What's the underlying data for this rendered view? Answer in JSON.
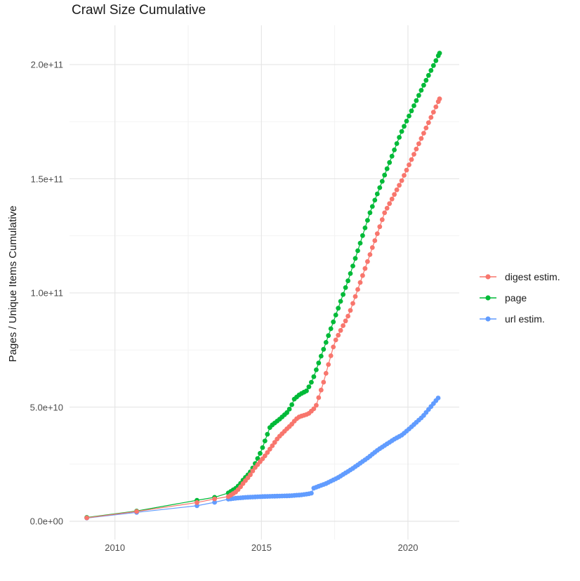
{
  "title": "Crawl Size Cumulative",
  "axes": {
    "y_title": "Pages / Unique Items Cumulative",
    "y_ticks": [
      "2.0e+11",
      "1.5e+11",
      "1.0e+11",
      "5.0e+10",
      "0.0e+00"
    ],
    "x_ticks": [
      "2010",
      "2015",
      "2020"
    ]
  },
  "legend": {
    "items": [
      {
        "label": "digest estim.",
        "color": "#F8766D"
      },
      {
        "label": "page",
        "color": "#00BA38"
      },
      {
        "label": "url estim.",
        "color": "#619CFF"
      }
    ]
  },
  "chart_data": {
    "type": "line",
    "title": "Crawl Size Cumulative",
    "xlabel": "",
    "ylabel": "Pages / Unique Items Cumulative",
    "legend_position": "right",
    "grid": true,
    "xlim": [
      2008.45,
      2021.75
    ],
    "ylim_e9": [
      -8,
      217.2
    ],
    "x_major_gridlines": [
      2010,
      2015,
      2020
    ],
    "x_minor_gridlines": [
      2012.5,
      2017.5
    ],
    "y_major_gridlines_e9": [
      0,
      50,
      100,
      150,
      200
    ],
    "y_minor_gridlines_e9": [
      25,
      75,
      125,
      175
    ],
    "y_unit_note": "all values in billions (1e9) of pages / unique items",
    "point_pattern_note": "sparse early crawls, then roughly monthly crawl points",
    "sparse_years": [
      2009.04,
      2010.74,
      2012.8,
      2013.4
    ],
    "monthly_from": 2013.87,
    "draw_order": [
      2,
      1,
      0
    ],
    "series": [
      {
        "name": "digest estim.",
        "color": "#F8766D",
        "end_year": 2021.08,
        "anchors_year_e9": [
          [
            2009.04,
            1.5
          ],
          [
            2010.74,
            4.3
          ],
          [
            2012.8,
            8.2
          ],
          [
            2013.4,
            9.8
          ],
          [
            2013.87,
            10.8
          ],
          [
            2014.13,
            12.9
          ],
          [
            2014.25,
            14.5
          ],
          [
            2014.4,
            17.0
          ],
          [
            2014.6,
            20.0
          ],
          [
            2014.75,
            23.0
          ],
          [
            2015.1,
            28.3
          ],
          [
            2015.57,
            36.6
          ],
          [
            2015.88,
            40.6
          ],
          [
            2016.0,
            42.0
          ],
          [
            2016.17,
            44.6
          ],
          [
            2016.3,
            45.8
          ],
          [
            2016.6,
            47.0
          ],
          [
            2016.85,
            50.0
          ],
          [
            2017.1,
            60.0
          ],
          [
            2017.5,
            78.5
          ],
          [
            2018.0,
            91.0
          ],
          [
            2019.2,
            135.0
          ],
          [
            2019.78,
            149.0
          ],
          [
            2021.08,
            185.0
          ]
        ]
      },
      {
        "name": "page",
        "color": "#00BA38",
        "end_year": 2021.08,
        "anchors_year_e9": [
          [
            2009.04,
            1.7
          ],
          [
            2010.74,
            4.5
          ],
          [
            2012.8,
            9.2
          ],
          [
            2013.4,
            10.5
          ],
          [
            2013.87,
            12.4
          ],
          [
            2014.13,
            14.5
          ],
          [
            2014.25,
            16.0
          ],
          [
            2014.4,
            18.5
          ],
          [
            2014.6,
            21.2
          ],
          [
            2014.75,
            24.3
          ],
          [
            2015.0,
            31.0
          ],
          [
            2015.3,
            41.5
          ],
          [
            2015.6,
            44.5
          ],
          [
            2015.88,
            47.7
          ],
          [
            2016.0,
            50.0
          ],
          [
            2016.12,
            53.5
          ],
          [
            2016.3,
            55.5
          ],
          [
            2016.55,
            57.2
          ],
          [
            2016.75,
            62.0
          ],
          [
            2017.5,
            89.0
          ],
          [
            2018.0,
            107.0
          ],
          [
            2018.7,
            135.0
          ],
          [
            2019.76,
            170.0
          ],
          [
            2020.5,
            190.0
          ],
          [
            2021.08,
            205.0
          ]
        ]
      },
      {
        "name": "url estim.",
        "color": "#619CFF",
        "end_year": 2021.03,
        "anchors_year_e9": [
          [
            2009.04,
            1.4
          ],
          [
            2010.74,
            3.9
          ],
          [
            2012.8,
            6.8
          ],
          [
            2013.4,
            8.3
          ],
          [
            2013.87,
            9.7
          ],
          [
            2014.13,
            10.1
          ],
          [
            2014.5,
            10.5
          ],
          [
            2015.0,
            10.8
          ],
          [
            2015.5,
            11.0
          ],
          [
            2016.0,
            11.2
          ],
          [
            2016.4,
            11.6
          ],
          [
            2016.7,
            12.2
          ],
          [
            2016.78,
            14.5
          ],
          [
            2017.2,
            16.5
          ],
          [
            2017.6,
            19.0
          ],
          [
            2018.1,
            23.0
          ],
          [
            2018.6,
            27.5
          ],
          [
            2019.0,
            31.5
          ],
          [
            2019.54,
            36.0
          ],
          [
            2019.8,
            37.8
          ],
          [
            2020.0,
            40.0
          ],
          [
            2020.5,
            45.8
          ],
          [
            2021.03,
            54.0
          ]
        ]
      }
    ]
  }
}
